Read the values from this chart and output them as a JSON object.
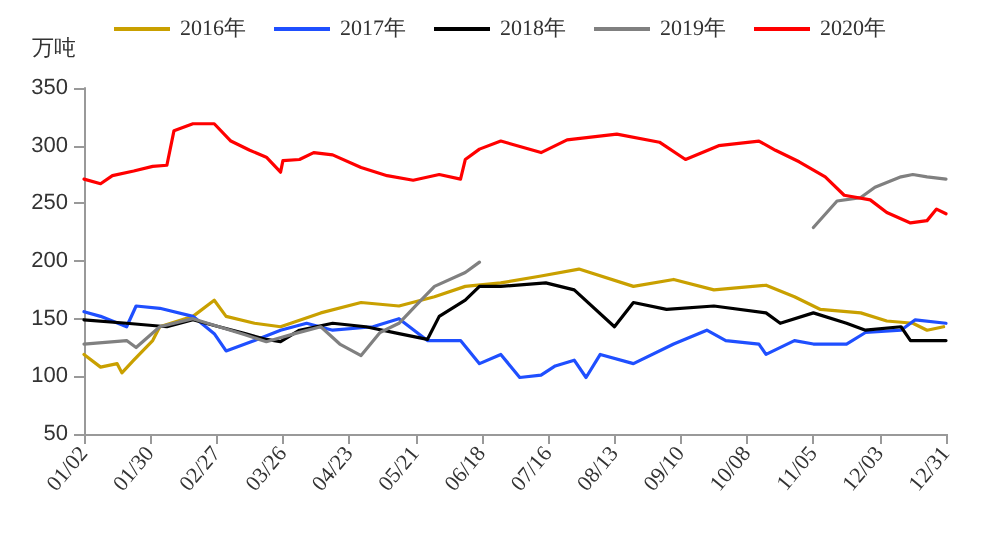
{
  "chart_data": {
    "type": "line",
    "ylabel": "万吨",
    "legend": "top",
    "grid": false,
    "marker": "none",
    "line_style": "solid",
    "ylim": [
      50,
      350
    ],
    "yticks": [
      50,
      100,
      150,
      200,
      250,
      300,
      350
    ],
    "xlim": [
      "--01-02",
      "--12-31"
    ],
    "xticks": [
      {
        "value": "--01-02",
        "label": "01/02"
      },
      {
        "value": "--01-30",
        "label": "01/30"
      },
      {
        "value": "--02-27",
        "label": "02/27"
      },
      {
        "value": "--03-26",
        "label": "03/26"
      },
      {
        "value": "--04-23",
        "label": "04/23"
      },
      {
        "value": "--05-21",
        "label": "05/21"
      },
      {
        "value": "--06-18",
        "label": "06/18"
      },
      {
        "value": "--07-16",
        "label": "07/16"
      },
      {
        "value": "--08-13",
        "label": "08/13"
      },
      {
        "value": "--09-10",
        "label": "09/10"
      },
      {
        "value": "--10-08",
        "label": "10/08"
      },
      {
        "value": "--11-05",
        "label": "11/05"
      },
      {
        "value": "--12-03",
        "label": "12/03"
      },
      {
        "value": "--12-31",
        "label": "12/31"
      }
    ],
    "series": [
      {
        "name": "2016年",
        "color": "#c9a000",
        "x": [
          "--01-02",
          "--01-09",
          "--01-16",
          "--01-18",
          "--01-23",
          "--01-31",
          "--02-03",
          "--02-17",
          "--02-26",
          "--03-02",
          "--03-14",
          "--03-25",
          "--04-11",
          "--04-28",
          "--05-14",
          "--05-29",
          "--06-11",
          "--06-26",
          "--07-13",
          "--07-29",
          "--08-21",
          "--09-07",
          "--09-24",
          "--10-16",
          "--10-28",
          "--11-08",
          "--11-25",
          "--12-06",
          "--12-17",
          "--12-23",
          "--12-30"
        ],
        "values": [
          119,
          108,
          111,
          103,
          114,
          131,
          143,
          152,
          166,
          152,
          146,
          143,
          155,
          164,
          161,
          169,
          178,
          181,
          187,
          193,
          178,
          184,
          175,
          179,
          169,
          158,
          155,
          148,
          146,
          140,
          143
        ]
      },
      {
        "name": "2017年",
        "color": "#1f4fff",
        "x": [
          "--01-02",
          "--01-09",
          "--01-20",
          "--01-24",
          "--02-03",
          "--02-17",
          "--02-26",
          "--03-02",
          "--03-14",
          "--03-25",
          "--04-05",
          "--04-16",
          "--05-03",
          "--05-14",
          "--05-26",
          "--06-09",
          "--06-17",
          "--06-26",
          "--07-04",
          "--07-13",
          "--07-19",
          "--07-27",
          "--08-01",
          "--08-07",
          "--08-21",
          "--09-07",
          "--09-21",
          "--09-29",
          "--10-13",
          "--10-16",
          "--10-28",
          "--11-05",
          "--11-19",
          "--11-27",
          "--12-12",
          "--12-18",
          "--12-31"
        ],
        "values": [
          156,
          152,
          143,
          161,
          159,
          152,
          137,
          122,
          131,
          140,
          146,
          140,
          143,
          150,
          131,
          131,
          111,
          119,
          99,
          101,
          109,
          114,
          99,
          119,
          111,
          128,
          140,
          131,
          128,
          119,
          131,
          128,
          128,
          138,
          140,
          149,
          146
        ]
      },
      {
        "name": "2018年",
        "color": "#000000",
        "x": [
          "--01-02",
          "--01-20",
          "--02-06",
          "--02-17",
          "--02-28",
          "--03-10",
          "--03-19",
          "--03-25",
          "--04-02",
          "--04-16",
          "--04-30",
          "--05-14",
          "--05-26",
          "--05-31",
          "--06-11",
          "--06-17",
          "--06-26",
          "--07-15",
          "--07-27",
          "--08-13",
          "--08-21",
          "--09-04",
          "--09-24",
          "--10-16",
          "--10-22",
          "--11-05",
          "--11-19",
          "--11-27",
          "--12-12",
          "--12-16",
          "--12-31"
        ],
        "values": [
          149,
          146,
          143,
          149,
          143,
          137,
          132,
          130,
          140,
          146,
          143,
          137,
          132,
          152,
          166,
          178,
          178,
          181,
          175,
          143,
          164,
          158,
          161,
          155,
          146,
          155,
          146,
          140,
          143,
          131,
          131
        ]
      },
      {
        "name": "2019年",
        "color": "#808080",
        "x": [
          "--01-02",
          "--01-20",
          "--01-24",
          "--02-03",
          "--02-17",
          "--02-28",
          "--03-10",
          "--03-19",
          "--03-31",
          "--04-11",
          "--04-19",
          "--04-28",
          "--05-06",
          "--05-14",
          "--05-21",
          "--05-29",
          "--06-11",
          "--06-17",
          "--09-01",
          "--11-05",
          "--11-15",
          "--11-25",
          "--12-01",
          "--12-12",
          "--12-17",
          "--12-23",
          "--12-31"
        ],
        "values": [
          128,
          131,
          125,
          143,
          150,
          143,
          136,
          130,
          137,
          143,
          128,
          118,
          138,
          146,
          161,
          178,
          190,
          199,
          null,
          229,
          252,
          255,
          264,
          273,
          275,
          273,
          271
        ]
      },
      {
        "name": "2020年",
        "color": "#ff0000",
        "x": [
          "--01-02",
          "--01-09",
          "--01-14",
          "--01-23",
          "--01-31",
          "--02-06",
          "--02-09",
          "--02-17",
          "--02-26",
          "--03-04",
          "--03-12",
          "--03-19",
          "--03-25",
          "--03-26",
          "--04-02",
          "--04-08",
          "--04-16",
          "--04-28",
          "--05-09",
          "--05-20",
          "--05-31",
          "--06-09",
          "--06-11",
          "--06-17",
          "--06-26",
          "--07-13",
          "--07-24",
          "--08-14",
          "--09-01",
          "--09-12",
          "--09-26",
          "--10-13",
          "--10-20",
          "--10-30",
          "--11-10",
          "--11-18",
          "--11-29",
          "--12-06",
          "--12-16",
          "--12-23",
          "--12-27",
          "--12-31"
        ],
        "values": [
          271,
          267,
          274,
          278,
          282,
          283,
          313,
          319,
          319,
          304,
          296,
          290,
          277,
          287,
          288,
          294,
          292,
          281,
          274,
          270,
          275,
          271,
          288,
          297,
          304,
          294,
          305,
          310,
          303,
          288,
          300,
          304,
          296,
          286,
          273,
          257,
          253,
          242,
          233,
          235,
          245,
          241
        ]
      }
    ]
  }
}
